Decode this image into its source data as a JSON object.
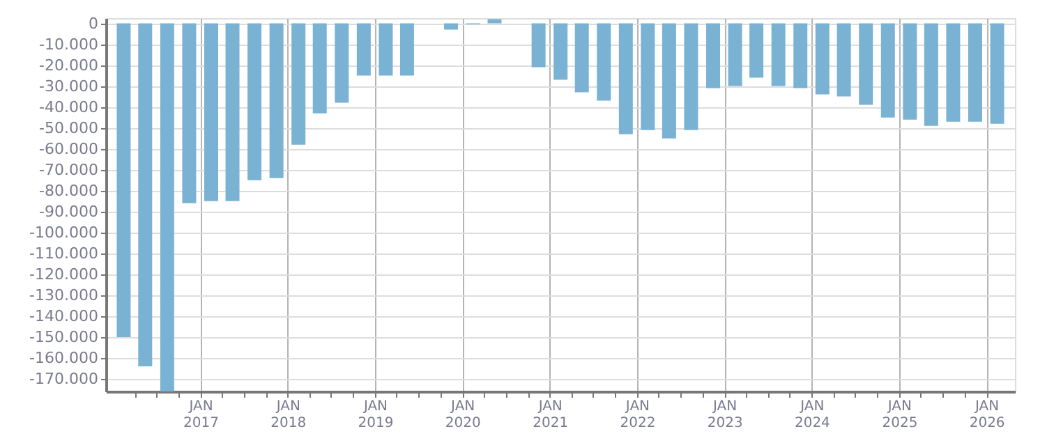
{
  "chart_data": {
    "type": "bar",
    "color": "#7ab2d4",
    "grid": true,
    "x": [
      "2016-02-15",
      "2016-05-15",
      "2016-08-15",
      "2016-11-15",
      "2017-02-15",
      "2017-05-15",
      "2017-08-15",
      "2017-11-15",
      "2018-02-15",
      "2018-05-15",
      "2018-08-15",
      "2018-11-15",
      "2019-02-15",
      "2019-05-15",
      "2019-08-15",
      "2019-11-15",
      "2020-02-15",
      "2020-05-15",
      "2020-08-15",
      "2020-11-15",
      "2021-02-15",
      "2021-05-15",
      "2021-08-15",
      "2021-11-15",
      "2022-02-15",
      "2022-05-15",
      "2022-08-15",
      "2022-11-15",
      "2023-02-15",
      "2023-05-15",
      "2023-08-15",
      "2023-11-15",
      "2024-02-15",
      "2024-05-15",
      "2024-08-15",
      "2024-11-15",
      "2025-02-15",
      "2025-05-15",
      "2025-08-15",
      "2025-11-15",
      "2026-02-15"
    ],
    "values": [
      -150000,
      -164000,
      -176000,
      -86000,
      -85000,
      -85000,
      -75000,
      -74000,
      -58000,
      -43000,
      -38000,
      -25000,
      -25000,
      -25000,
      null,
      -3000,
      -500,
      2000,
      null,
      -21000,
      -27000,
      -33000,
      -37000,
      -53000,
      -51000,
      -55000,
      -51000,
      -31000,
      -30000,
      -26000,
      -30000,
      -31000,
      -34000,
      -35000,
      -39000,
      -45000,
      -46000,
      -49000,
      -47000,
      -47000,
      -48000
    ],
    "xlim": [
      "2016-01-01",
      "2026-04-01"
    ],
    "xticks": [
      {
        "value": "2016-04-01",
        "label": null
      },
      {
        "value": "2016-07-01",
        "label": null
      },
      {
        "value": "2016-10-01",
        "label": null
      },
      {
        "value": "2017-01-01",
        "label": "JAN\n2017"
      },
      {
        "value": "2017-04-01",
        "label": null
      },
      {
        "value": "2017-07-01",
        "label": null
      },
      {
        "value": "2017-10-01",
        "label": null
      },
      {
        "value": "2018-01-01",
        "label": "JAN\n2018"
      },
      {
        "value": "2018-04-01",
        "label": null
      },
      {
        "value": "2018-07-01",
        "label": null
      },
      {
        "value": "2018-10-01",
        "label": null
      },
      {
        "value": "2019-01-01",
        "label": "JAN\n2019"
      },
      {
        "value": "2019-04-01",
        "label": null
      },
      {
        "value": "2019-07-01",
        "label": null
      },
      {
        "value": "2019-10-01",
        "label": null
      },
      {
        "value": "2020-01-01",
        "label": "JAN\n2020"
      },
      {
        "value": "2020-04-01",
        "label": null
      },
      {
        "value": "2020-07-01",
        "label": null
      },
      {
        "value": "2020-10-01",
        "label": null
      },
      {
        "value": "2021-01-01",
        "label": "JAN\n2021"
      },
      {
        "value": "2021-04-01",
        "label": null
      },
      {
        "value": "2021-07-01",
        "label": null
      },
      {
        "value": "2021-10-01",
        "label": null
      },
      {
        "value": "2022-01-01",
        "label": "JAN\n2022"
      },
      {
        "value": "2022-04-01",
        "label": null
      },
      {
        "value": "2022-07-01",
        "label": null
      },
      {
        "value": "2022-10-01",
        "label": null
      },
      {
        "value": "2023-01-01",
        "label": "JAN\n2023"
      },
      {
        "value": "2023-04-01",
        "label": null
      },
      {
        "value": "2023-07-01",
        "label": null
      },
      {
        "value": "2023-10-01",
        "label": null
      },
      {
        "value": "2024-01-01",
        "label": "JAN\n2024"
      },
      {
        "value": "2024-04-01",
        "label": null
      },
      {
        "value": "2024-07-01",
        "label": null
      },
      {
        "value": "2024-10-01",
        "label": null
      },
      {
        "value": "2025-01-01",
        "label": "JAN\n2025"
      },
      {
        "value": "2025-04-01",
        "label": null
      },
      {
        "value": "2025-07-01",
        "label": null
      },
      {
        "value": "2025-10-01",
        "label": null
      },
      {
        "value": "2026-01-01",
        "label": "JAN\n2026"
      }
    ],
    "ylim": [
      -176000,
      2500
    ],
    "yticks": [
      {
        "value": 0,
        "label": "0"
      },
      {
        "value": -10000,
        "label": "-10.000"
      },
      {
        "value": -20000,
        "label": "-20.000"
      },
      {
        "value": -30000,
        "label": "-30.000"
      },
      {
        "value": -40000,
        "label": "-40.000"
      },
      {
        "value": -50000,
        "label": "-50.000"
      },
      {
        "value": -60000,
        "label": "-60.000"
      },
      {
        "value": -70000,
        "label": "-70.000"
      },
      {
        "value": -80000,
        "label": "-80.000"
      },
      {
        "value": -90000,
        "label": "-90.000"
      },
      {
        "value": -100000,
        "label": "-100.000"
      },
      {
        "value": -110000,
        "label": "-110.000"
      },
      {
        "value": -120000,
        "label": "-120.000"
      },
      {
        "value": -130000,
        "label": "-130.000"
      },
      {
        "value": -140000,
        "label": "-140.000"
      },
      {
        "value": -150000,
        "label": "-150.000"
      },
      {
        "value": -160000,
        "label": "-160.000"
      },
      {
        "value": -170000,
        "label": "-170.000"
      }
    ]
  }
}
